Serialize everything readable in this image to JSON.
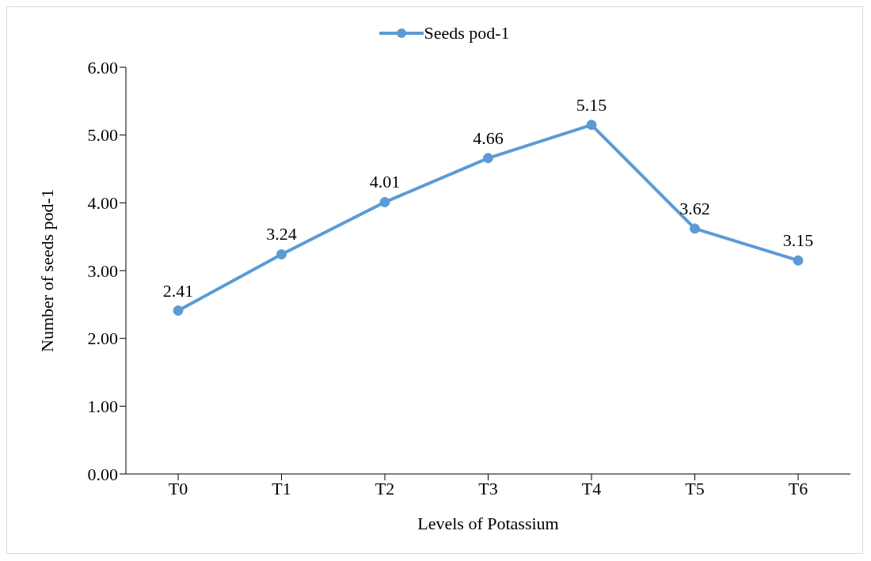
{
  "chart_data": {
    "type": "line",
    "xlabel": "Levels of Potassium",
    "ylabel": "Number of seeds pod-1",
    "categories": [
      "T0",
      "T1",
      "T2",
      "T3",
      "T4",
      "T5",
      "T6"
    ],
    "series": [
      {
        "name": "Seeds pod-1",
        "color": "#5b9bd5",
        "values": [
          2.41,
          3.24,
          4.01,
          4.66,
          5.15,
          3.62,
          3.15
        ]
      }
    ],
    "ylim": [
      0,
      6
    ],
    "yticks": [
      {
        "value": 0,
        "label": "0.00"
      },
      {
        "value": 1,
        "label": "1.00"
      },
      {
        "value": 2,
        "label": "2.00"
      },
      {
        "value": 3,
        "label": "3.00"
      },
      {
        "value": 4,
        "label": "4.00"
      },
      {
        "value": 5,
        "label": "5.00"
      },
      {
        "value": 6,
        "label": "6.00"
      }
    ],
    "grid": false,
    "legend": "top",
    "marker": "circle",
    "line_style": "solid",
    "data_labels": true
  }
}
